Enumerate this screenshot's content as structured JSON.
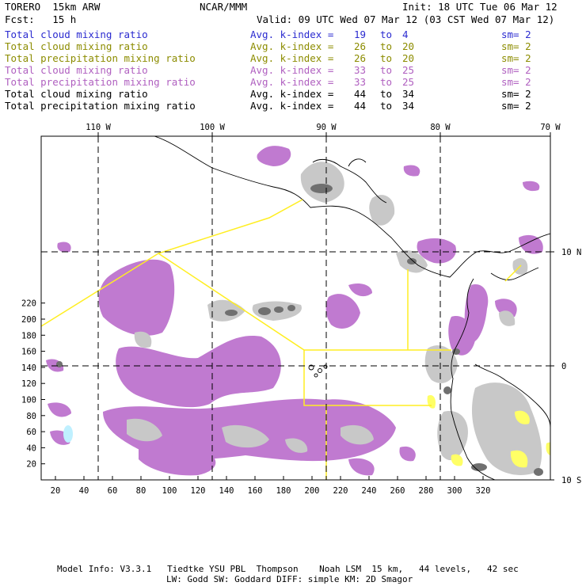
{
  "header": {
    "model": "TORERO  15km ARW",
    "org": "NCAR/MMM",
    "init": "Init: 18 UTC Tue 06 Mar 12",
    "fcst": "Fcst:   15 h",
    "valid": "Valid: 09 UTC Wed 07 Mar 12 (03 CST Wed 07 Mar 12)"
  },
  "legend": [
    {
      "field": "Total cloud mixing ratio",
      "index_label": "Avg. k-index =",
      "k_from": "19",
      "to": "to",
      "k_to": "4",
      "sm": "sm= 2",
      "color": "#2b2bd0"
    },
    {
      "field": "Total cloud mixing ratio",
      "index_label": "Avg. k-index =",
      "k_from": "26",
      "to": "to",
      "k_to": "20",
      "sm": "sm= 2",
      "color": "#8c8c00"
    },
    {
      "field": "Total precipitation mixing ratio",
      "index_label": "Avg. k-index =",
      "k_from": "26",
      "to": "to",
      "k_to": "20",
      "sm": "sm= 2",
      "color": "#8c8c00"
    },
    {
      "field": "Total cloud mixing ratio",
      "index_label": "Avg. k-index =",
      "k_from": "33",
      "to": "to",
      "k_to": "25",
      "sm": "sm= 2",
      "color": "#b060c0"
    },
    {
      "field": "Total precipitation mixing ratio",
      "index_label": "Avg. k-index =",
      "k_from": "33",
      "to": "to",
      "k_to": "25",
      "sm": "sm= 2",
      "color": "#b060c0"
    },
    {
      "field": "Total cloud mixing ratio",
      "index_label": "Avg. k-index =",
      "k_from": "44",
      "to": "to",
      "k_to": "34",
      "sm": "sm= 2",
      "color": "#000000"
    },
    {
      "field": "Total precipitation mixing ratio",
      "index_label": "Avg. k-index =",
      "k_from": "44",
      "to": "to",
      "k_to": "34",
      "sm": "sm= 2",
      "color": "#000000"
    }
  ],
  "map": {
    "top_lon_labels": [
      "110 W",
      "100 W",
      "90 W",
      "80 W",
      "70 W"
    ],
    "right_lat_labels": [
      "10 N",
      "0",
      "10 S"
    ],
    "left_ticks": [
      "220",
      "200",
      "180",
      "160",
      "140",
      "120",
      "100",
      "80",
      "60",
      "40",
      "20"
    ],
    "bottom_ticks": [
      "20",
      "40",
      "60",
      "80",
      "100",
      "120",
      "140",
      "160",
      "180",
      "200",
      "220",
      "240",
      "260",
      "280",
      "300",
      "320"
    ],
    "colors": {
      "cloud_purple": "#c07ad0",
      "gray_light": "#c8c8c8",
      "gray_dark": "#707070",
      "yellow": "#ffff66",
      "cyan": "#bff0ff",
      "coast": "#000000",
      "grid": "#000000",
      "track": "#ffee22"
    }
  },
  "footer": {
    "line1": "Model Info: V3.3.1   Tiedtke YSU PBL  Thompson    Noah LSM  15 km,   44 levels,   42 sec",
    "line2": "LW: Godd SW: Goddard DIFF: simple KM: 2D Smagor"
  }
}
